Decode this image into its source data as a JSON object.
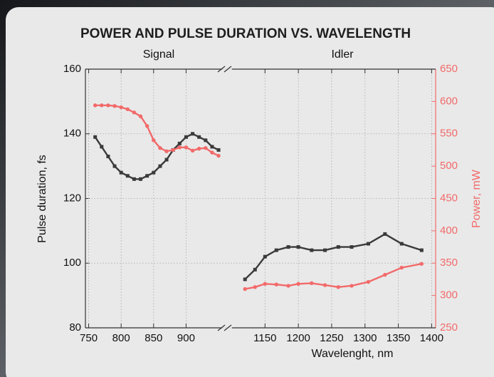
{
  "chart_data": {
    "type": "line",
    "title": "POWER AND PULSE DURATION VS. WAVELENGTH",
    "section_labels": [
      "Signal",
      "Idler"
    ],
    "xlabel": "Wavelenght, nm",
    "ylabel": "Pulse duration, fs",
    "y2label": "Power, mW",
    "x_segments": [
      [
        745,
        962
      ],
      [
        1092,
        1406
      ]
    ],
    "xticks": [
      750,
      800,
      850,
      900,
      1150,
      1200,
      1250,
      1300,
      1350,
      1400
    ],
    "ylim": [
      80,
      160
    ],
    "yticks": [
      80,
      100,
      120,
      140,
      160
    ],
    "y2lim": [
      250,
      650
    ],
    "y2ticks": [
      250,
      300,
      350,
      400,
      450,
      500,
      550,
      600,
      650
    ],
    "grid": true,
    "series": [
      {
        "color": "#3a3a3a",
        "marker": "square",
        "x": [
          760,
          770,
          780,
          790,
          800,
          810,
          820,
          830,
          840,
          850,
          860,
          870,
          880,
          890,
          900,
          910,
          920,
          930,
          940,
          950
        ],
        "values": [
          139,
          136,
          133,
          130,
          128,
          127,
          126,
          126,
          127,
          128,
          130,
          132,
          135,
          137,
          139,
          140,
          139,
          138,
          136,
          135
        ]
      },
      {
        "color": "#f26a6a",
        "marker": "circle",
        "axis": "y2",
        "x": [
          760,
          770,
          780,
          790,
          800,
          810,
          820,
          830,
          840,
          850,
          860,
          870,
          880,
          890,
          900,
          910,
          920,
          930,
          940,
          950
        ],
        "values": [
          594,
          594,
          594,
          593,
          591,
          588,
          583,
          577,
          562,
          540,
          528,
          523,
          525,
          529,
          529,
          524,
          527,
          528,
          521,
          516
        ]
      },
      {
        "color": "#3a3a3a",
        "marker": "square",
        "x": [
          1120,
          1135,
          1150,
          1167,
          1185,
          1200,
          1220,
          1240,
          1260,
          1280,
          1305,
          1330,
          1355,
          1385
        ],
        "values": [
          95,
          98,
          102,
          104,
          105,
          105,
          104,
          104,
          105,
          105,
          106,
          109,
          106,
          104
        ]
      },
      {
        "color": "#f26a6a",
        "marker": "circle",
        "axis": "y2",
        "x": [
          1120,
          1135,
          1150,
          1167,
          1185,
          1200,
          1220,
          1240,
          1260,
          1280,
          1305,
          1330,
          1355,
          1385
        ],
        "values": [
          310,
          313,
          318,
          317,
          315,
          318,
          319,
          316,
          313,
          315,
          321,
          332,
          343,
          349
        ]
      }
    ]
  }
}
